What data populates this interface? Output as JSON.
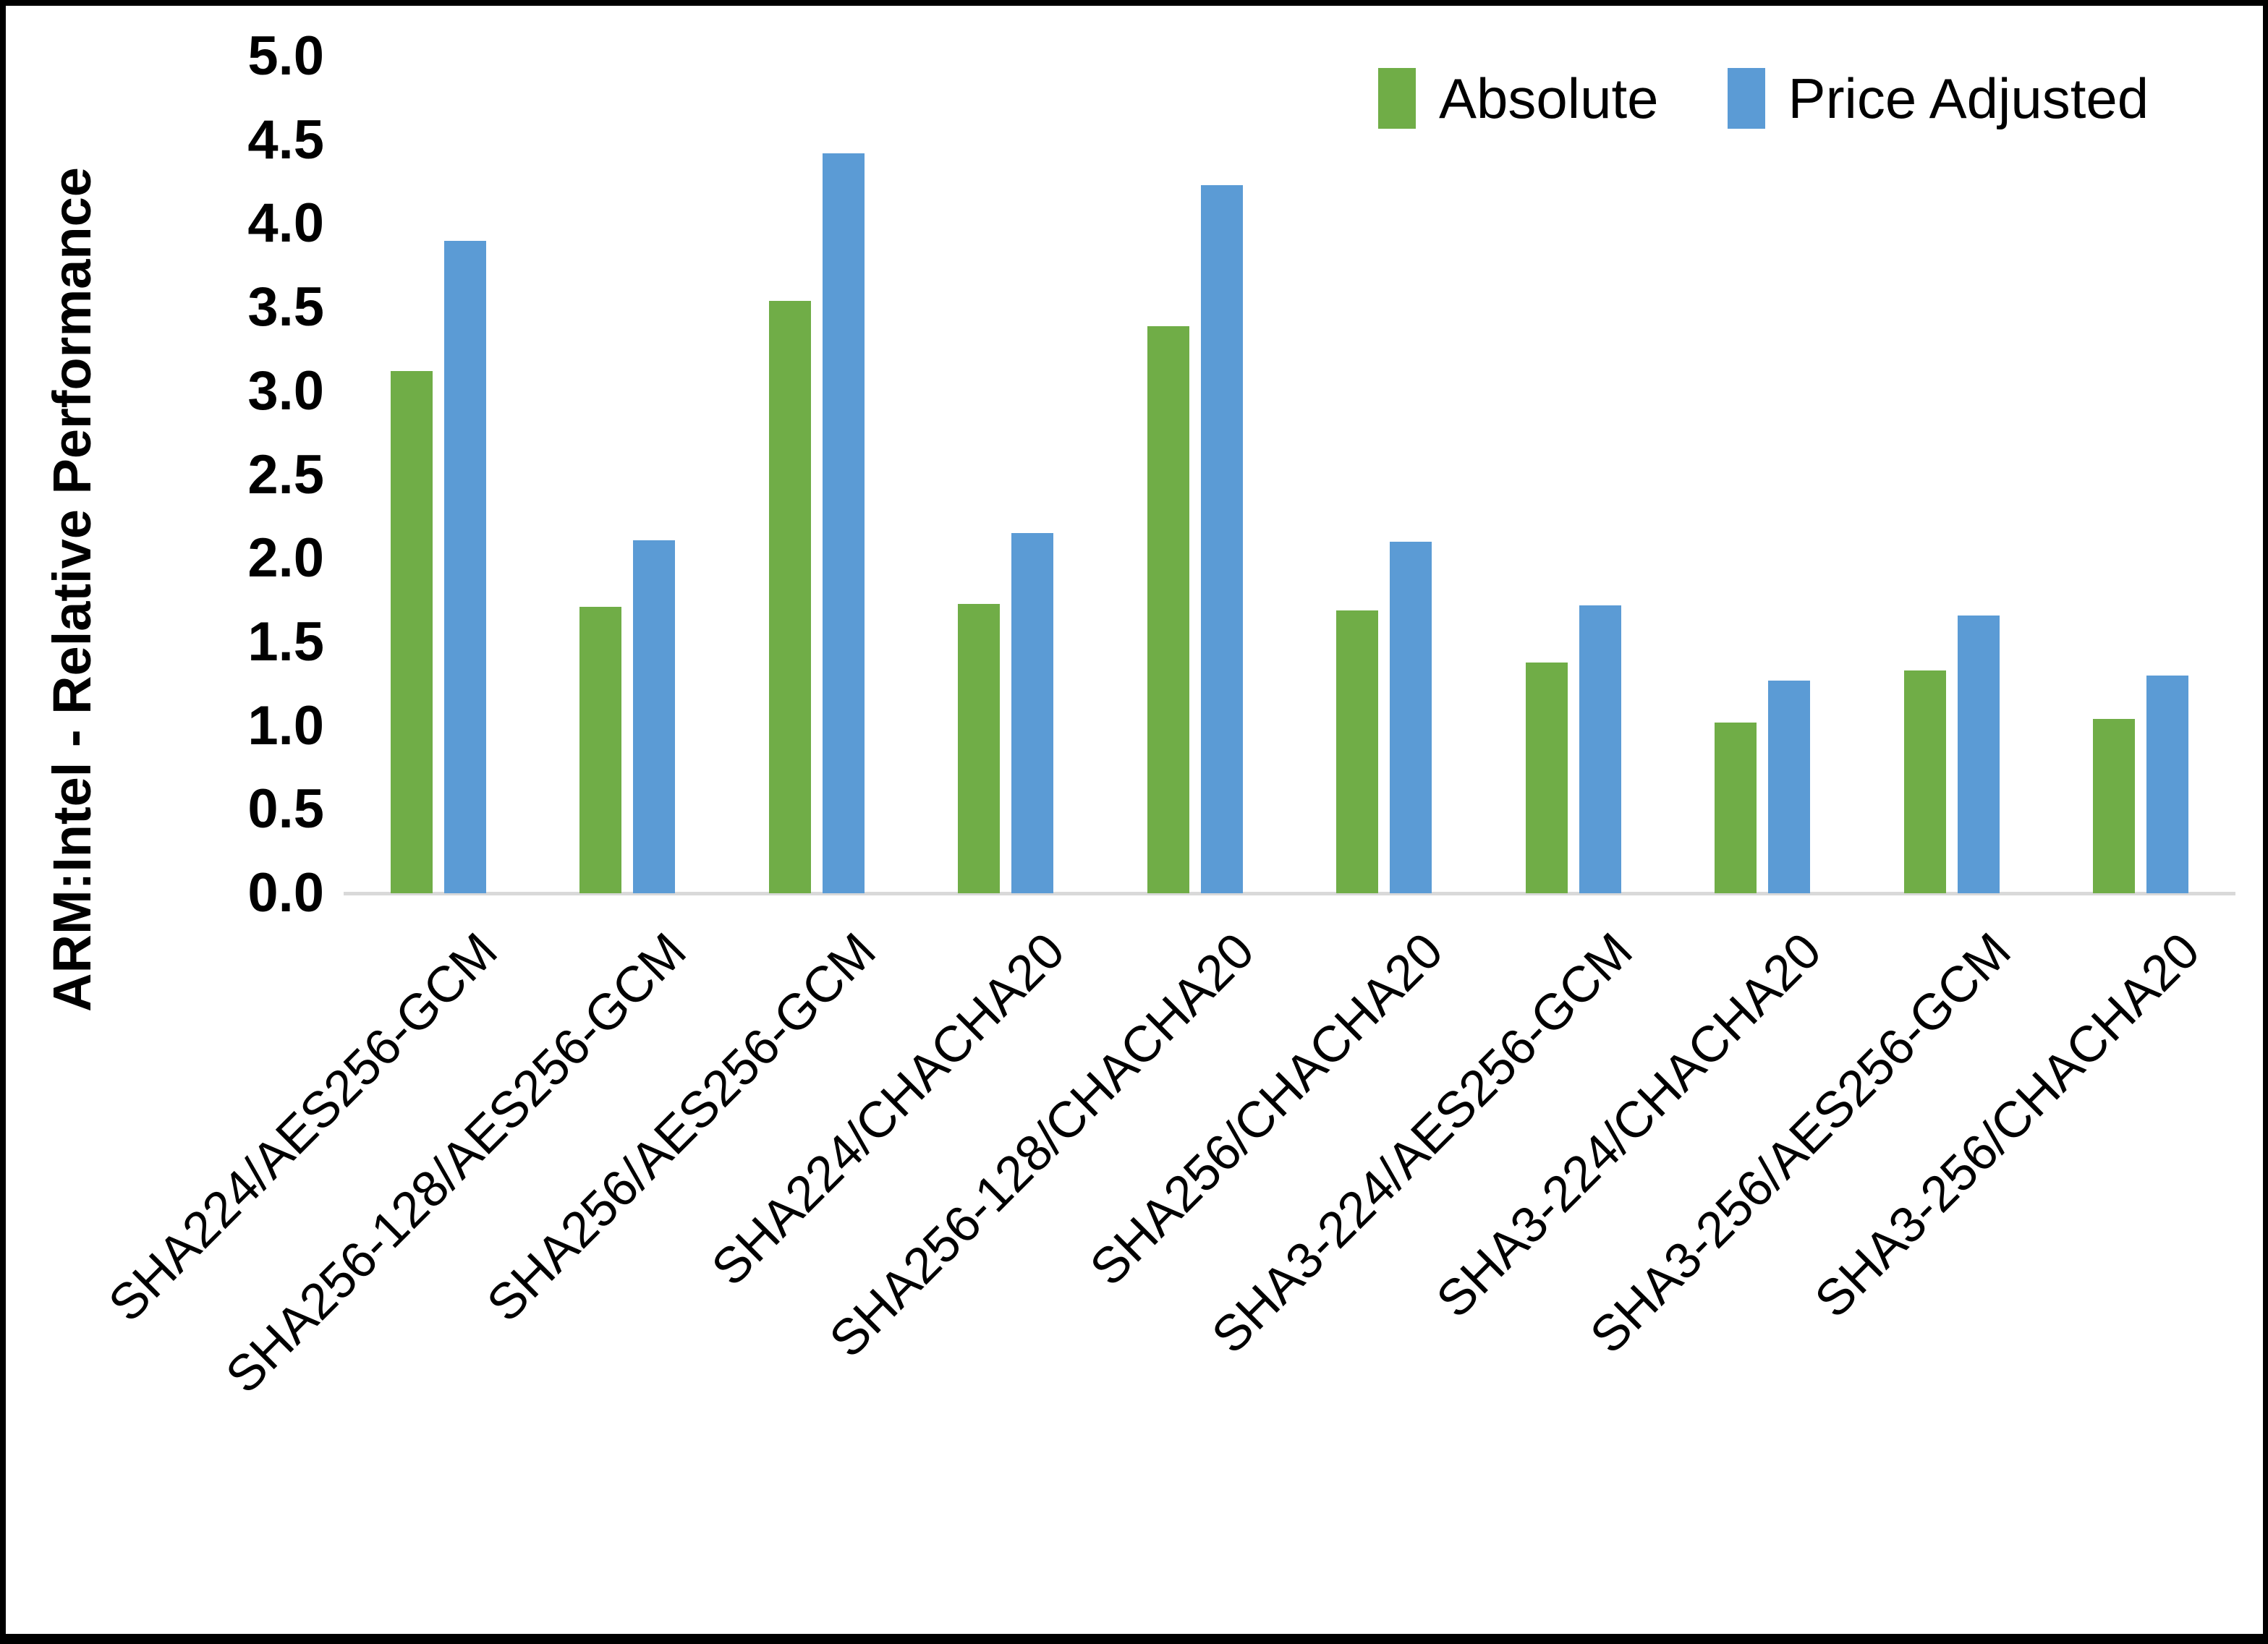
{
  "figure": {
    "background": "#FFFFFF",
    "frame_color": "#000000",
    "baseline_color": "#D9D9D9"
  },
  "y_axis": {
    "title": "ARM:Intel - Relative Performance",
    "tick_labels": [
      "5.0",
      "4.5",
      "4.0",
      "3.5",
      "3.0",
      "2.5",
      "2.0",
      "1.5",
      "1.0",
      "0.5",
      "0.0"
    ],
    "min": 0,
    "max": 5
  },
  "chart_data": {
    "type": "bar",
    "title": "",
    "xlabel": "",
    "ylabel": "ARM:Intel - Relative Performance",
    "ylim": [
      0,
      5
    ],
    "ytick_step": 0.5,
    "grid": false,
    "legend_position": "top-right",
    "categories": [
      "SHA224/AES256-GCM",
      "SHA256-128/AES256-GCM",
      "SHA256/AES256-GCM",
      "SHA224/CHACHA20",
      "SHA256-128/CHACHA20",
      "SHA256/CHACHA20",
      "SHA3-224/AES256-GCM",
      "SHA3-224/CHACHA20",
      "SHA3-256/AES256-GCM",
      "SHA3-256/CHACHA20"
    ],
    "series": [
      {
        "name": "Absolute",
        "color": "#70AD47",
        "values": [
          3.12,
          1.71,
          3.54,
          1.73,
          3.39,
          1.69,
          1.38,
          1.02,
          1.33,
          1.04
        ]
      },
      {
        "name": "Price Adjusted",
        "color": "#5B9BD5",
        "values": [
          3.9,
          2.11,
          4.42,
          2.15,
          4.23,
          2.1,
          1.72,
          1.27,
          1.66,
          1.3
        ]
      }
    ]
  }
}
